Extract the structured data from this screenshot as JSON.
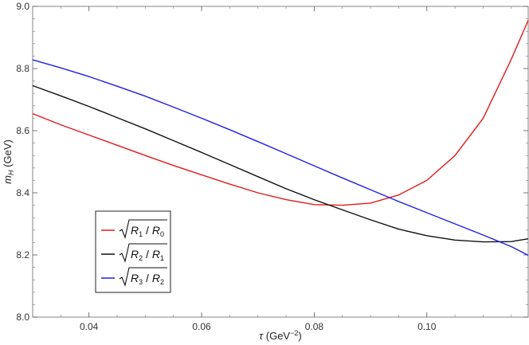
{
  "chart_data": {
    "type": "line",
    "title": "",
    "xlabel": "τ (GeV⁻²)",
    "xlabel_parts": {
      "symbol": "τ",
      "unit_open": " (GeV",
      "unit_exp": "−2",
      "unit_close": ")"
    },
    "ylabel": "m_H (GeV)",
    "ylabel_parts": {
      "symbol": "m",
      "sub": "H",
      "unit": " (GeV)"
    },
    "xlim": [
      0.03,
      0.118
    ],
    "ylim": [
      8.0,
      9.0
    ],
    "xticks": [
      0.04,
      0.06,
      0.08,
      0.1
    ],
    "xtick_labels": [
      "0.04",
      "0.06",
      "0.08",
      "0.10"
    ],
    "yticks": [
      8.0,
      8.2,
      8.4,
      8.6,
      8.8,
      9.0
    ],
    "ytick_labels": [
      "8.0",
      "8.2",
      "8.4",
      "8.6",
      "8.8",
      "9.0"
    ],
    "grid": false,
    "legend_position": "bottom-left",
    "series": [
      {
        "name": "√(R1/R0)",
        "legend": {
          "a": "R",
          "a_sub": "1",
          "b": "R",
          "b_sub": "0"
        },
        "color": "#e31a1c",
        "x": [
          0.03,
          0.035,
          0.04,
          0.045,
          0.05,
          0.055,
          0.06,
          0.065,
          0.07,
          0.075,
          0.08,
          0.085,
          0.09,
          0.095,
          0.1,
          0.105,
          0.11,
          0.115,
          0.118
        ],
        "y": [
          8.655,
          8.619,
          8.586,
          8.553,
          8.52,
          8.488,
          8.458,
          8.428,
          8.4,
          8.378,
          8.362,
          8.36,
          8.367,
          8.393,
          8.44,
          8.52,
          8.64,
          8.83,
          8.955
        ]
      },
      {
        "name": "√(R2/R1)",
        "legend": {
          "a": "R",
          "a_sub": "2",
          "b": "R",
          "b_sub": "1"
        },
        "color": "#111111",
        "x": [
          0.03,
          0.035,
          0.04,
          0.045,
          0.05,
          0.055,
          0.06,
          0.065,
          0.07,
          0.075,
          0.08,
          0.085,
          0.09,
          0.095,
          0.1,
          0.105,
          0.11,
          0.115,
          0.118
        ],
        "y": [
          8.745,
          8.712,
          8.678,
          8.642,
          8.606,
          8.568,
          8.53,
          8.491,
          8.452,
          8.413,
          8.378,
          8.345,
          8.313,
          8.283,
          8.262,
          8.248,
          8.242,
          8.243,
          8.252
        ]
      },
      {
        "name": "√(R3/R2)",
        "legend": {
          "a": "R",
          "a_sub": "3",
          "b": "R",
          "b_sub": "2"
        },
        "color": "#1f1fe6",
        "x": [
          0.03,
          0.035,
          0.04,
          0.045,
          0.05,
          0.055,
          0.06,
          0.065,
          0.07,
          0.075,
          0.08,
          0.085,
          0.09,
          0.095,
          0.1,
          0.105,
          0.11,
          0.115,
          0.118
        ],
        "y": [
          8.828,
          8.802,
          8.774,
          8.743,
          8.711,
          8.676,
          8.64,
          8.603,
          8.565,
          8.526,
          8.487,
          8.448,
          8.41,
          8.372,
          8.336,
          8.3,
          8.264,
          8.227,
          8.199
        ]
      }
    ]
  }
}
